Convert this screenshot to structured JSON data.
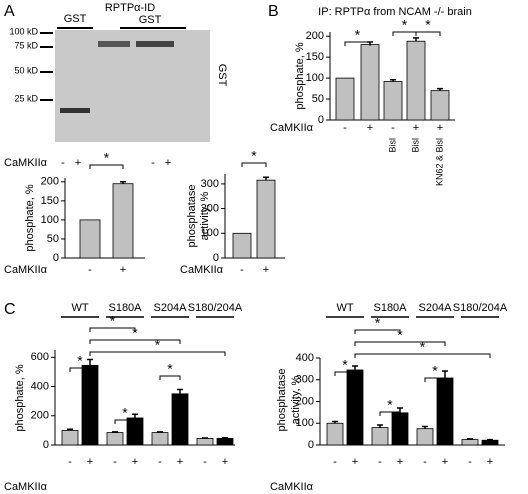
{
  "figure": {
    "panels": [
      "A",
      "B",
      "C"
    ],
    "blot": {
      "lane_labels": [
        "GST",
        "RPTPα-ID",
        "GST"
      ],
      "markers": [
        "100 kD",
        "75 kD",
        "50 kD",
        "25 kD"
      ],
      "antibody": "GST",
      "treatment": "CaMKIIα",
      "conditions": [
        "-",
        "+"
      ]
    }
  },
  "chart_data": [
    {
      "type": "bar",
      "ylabel": [
        "phosphate, %"
      ],
      "xlabel": "CaMKIIα",
      "categories": [
        "-",
        "+"
      ],
      "values": [
        100,
        195
      ],
      "errors": [
        0,
        5
      ],
      "color": "#c0c0c0",
      "ylim": [
        0,
        210
      ],
      "yticks": [
        0,
        50,
        100,
        150,
        200
      ],
      "significance": "*"
    },
    {
      "type": "bar",
      "ylabel": [
        "phosphatase",
        "activity, %"
      ],
      "xlabel": "CaMKIIα",
      "categories": [
        "-",
        "+"
      ],
      "values": [
        100,
        315
      ],
      "errors": [
        0,
        12
      ],
      "color": "#c0c0c0",
      "ylim": [
        0,
        340
      ],
      "yticks": [
        0,
        100,
        200,
        300
      ],
      "significance": "*"
    },
    {
      "type": "bar",
      "title": "IP: RPTPα from NCAM -/- brain",
      "ylabel": [
        "phosphate, %"
      ],
      "xlabel": "CaMKIIα",
      "categories": [
        "-",
        "+",
        "-",
        "+",
        "+"
      ],
      "treatments": [
        null,
        null,
        "Bisl",
        "Bisl",
        "KN62 & Bisl"
      ],
      "values": [
        100,
        180,
        92,
        188,
        70
      ],
      "errors": [
        0,
        6,
        4,
        8,
        5
      ],
      "color": "#c0c0c0",
      "ylim": [
        0,
        210
      ],
      "yticks": [
        0,
        50,
        100,
        150,
        200
      ],
      "significance": "*"
    },
    {
      "type": "grouped_bar",
      "ylabel": [
        "phosphate, %"
      ],
      "xlabel": "CaMKIIα",
      "groups": [
        "WT",
        "S180A",
        "S204A",
        "S180/204A"
      ],
      "conditions": [
        "-",
        "+"
      ],
      "series": [
        {
          "color": "#c0c0c0",
          "values": [
            100,
            85,
            85,
            45
          ],
          "errors": [
            8,
            5,
            5,
            3
          ]
        },
        {
          "color": "#000000",
          "values": [
            545,
            185,
            350,
            45
          ],
          "errors": [
            40,
            25,
            30,
            5
          ]
        }
      ],
      "ylim": [
        0,
        650
      ],
      "yticks": [
        0,
        200,
        400,
        600
      ],
      "significance": "*"
    },
    {
      "type": "grouped_bar",
      "ylabel": [
        "phosphatase",
        "activity, %"
      ],
      "xlabel": "CaMKIIα",
      "groups": [
        "WT",
        "S180A",
        "S204A",
        "S180/204A"
      ],
      "conditions": [
        "-",
        "+"
      ],
      "series": [
        {
          "color": "#c0c0c0",
          "values": [
            100,
            80,
            75,
            25
          ],
          "errors": [
            8,
            12,
            10,
            3
          ]
        },
        {
          "color": "#000000",
          "values": [
            345,
            148,
            308,
            22
          ],
          "errors": [
            18,
            22,
            32,
            3
          ]
        }
      ],
      "ylim": [
        0,
        400
      ],
      "yticks": [
        0,
        100,
        200,
        300,
        400
      ],
      "significance": "*"
    }
  ]
}
